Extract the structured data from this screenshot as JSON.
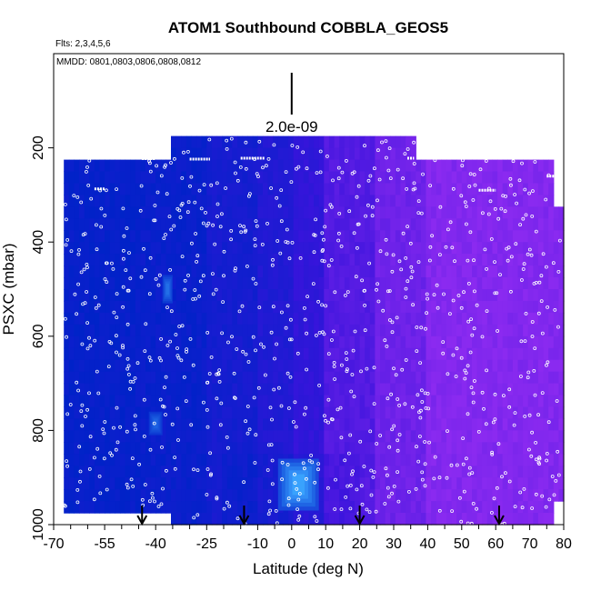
{
  "chart_data": {
    "type": "heatmap",
    "title": "ATOM1 Southbound COBBLA_GEOS5",
    "flights_note": "Flts: 2,3,4,5,6",
    "dates_note": "MMDD: 0801,0803,0806,0808,0812",
    "xlabel": "Latitude (deg N)",
    "ylabel": "PSXC (mbar)",
    "xlim": [
      -70,
      80
    ],
    "ylim": [
      1000,
      0
    ],
    "xticks": [
      -70,
      -55,
      -40,
      -25,
      -10,
      0,
      10,
      20,
      30,
      40,
      50,
      60,
      70,
      80
    ],
    "xtick_labels": [
      "-70",
      "-55",
      "-40",
      "-25",
      "-10",
      "0",
      "10",
      "20",
      "30",
      "40",
      "50",
      "60",
      "70",
      "80"
    ],
    "yticks": [
      200,
      400,
      600,
      800,
      1000
    ],
    "ytick_labels": [
      "200",
      "400",
      "600",
      "800",
      "1000"
    ],
    "scale_bar": {
      "label": "2.0e-09",
      "latitude": 0
    },
    "surface_arrows_latitude": [
      -44,
      -14,
      20,
      61
    ],
    "colors": {
      "low": "#0022c8",
      "mid": "#3a14dc",
      "high": "#8a2af0",
      "core_high": "#3ca8ff",
      "marker": "#ffffff"
    },
    "domain": [
      {
        "lat": [
          -67,
          -35
        ],
        "p": [
          220,
          965
        ]
      },
      {
        "lat": [
          -35,
          36
        ],
        "p": [
          175,
          1000
        ]
      },
      {
        "lat": [
          36,
          77
        ],
        "p": [
          225,
          1000
        ]
      },
      {
        "lat": [
          77,
          80
        ],
        "p": [
          330,
          960
        ]
      }
    ],
    "value_note": "relative concentration 0=low(blue) 1=high(purple) by latitude band",
    "bands": [
      {
        "lat": [
          -67,
          -45
        ],
        "value": 0.05
      },
      {
        "lat": [
          -45,
          -25
        ],
        "value": 0.08
      },
      {
        "lat": [
          -25,
          -10
        ],
        "value": 0.18
      },
      {
        "lat": [
          -10,
          0
        ],
        "value": 0.28
      },
      {
        "lat": [
          0,
          10
        ],
        "value": 0.42
      },
      {
        "lat": [
          10,
          25
        ],
        "value": 0.65
      },
      {
        "lat": [
          25,
          40
        ],
        "value": 0.82
      },
      {
        "lat": [
          40,
          80
        ],
        "value": 0.95
      }
    ],
    "hotspots": [
      {
        "lat": [
          -38,
          -35
        ],
        "p": [
          470,
          530
        ],
        "value": -0.6
      },
      {
        "lat": [
          -42,
          -38
        ],
        "p": [
          760,
          810
        ],
        "value": -0.5
      },
      {
        "lat": [
          -4,
          8
        ],
        "p": [
          860,
          970
        ],
        "value": -1.0
      }
    ],
    "upper_white_segments": [
      {
        "lat": [
          -66,
          -62
        ],
        "p": 222
      },
      {
        "lat": [
          -58,
          -55
        ],
        "p": 287
      },
      {
        "lat": [
          -44,
          -40
        ],
        "p": 223
      },
      {
        "lat": [
          -30,
          -24
        ],
        "p": 224
      },
      {
        "lat": [
          -15,
          -8
        ],
        "p": 222
      },
      {
        "lat": [
          34,
          36
        ],
        "p": 222
      },
      {
        "lat": [
          47,
          50
        ],
        "p": 222
      },
      {
        "lat": [
          57,
          60
        ],
        "p": 222
      },
      {
        "lat": [
          72,
          76
        ],
        "p": 222
      },
      {
        "lat": [
          55,
          60
        ],
        "p": 290
      },
      {
        "lat": [
          75,
          78
        ],
        "p": 260
      }
    ]
  }
}
